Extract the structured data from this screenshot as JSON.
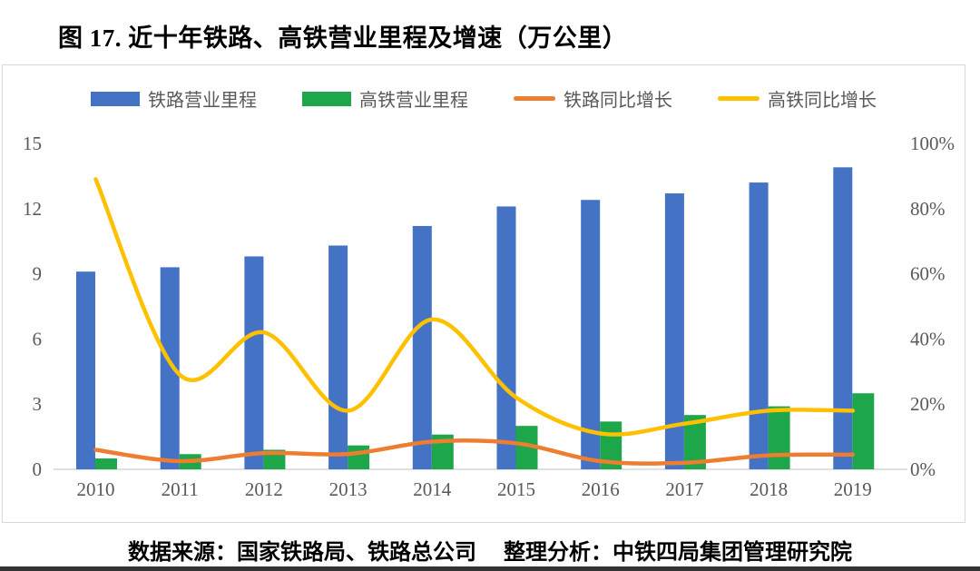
{
  "title": "图 17. 近十年铁路、高铁营业里程及增速（万公里）",
  "source_note": "数据来源：国家铁路局、铁路总公司　 整理分析：中铁四局集团管理研究院",
  "styles": {
    "text_color": "#595959",
    "axis_line_color": "#d6d6d6",
    "frame_border_color": "#d9d9d9"
  },
  "chart_data": {
    "type": "bar",
    "subtype": "combo-bar-line",
    "categories": [
      "2010",
      "2011",
      "2012",
      "2013",
      "2014",
      "2015",
      "2016",
      "2017",
      "2018",
      "2019"
    ],
    "series": [
      {
        "name": "铁路营业里程",
        "type": "bar",
        "axis": "left",
        "color": "#4472C4",
        "values": [
          9.1,
          9.3,
          9.8,
          10.3,
          11.2,
          12.1,
          12.4,
          12.7,
          13.2,
          13.9
        ]
      },
      {
        "name": "高铁营业里程",
        "type": "bar",
        "axis": "left",
        "color": "#1EA64A",
        "values": [
          0.5,
          0.7,
          0.9,
          1.1,
          1.6,
          2.0,
          2.2,
          2.5,
          2.9,
          3.5
        ]
      },
      {
        "name": "铁路同比增长",
        "type": "line",
        "axis": "right",
        "color": "#ED7D31",
        "values": [
          6,
          2.5,
          5,
          4.7,
          8.5,
          8,
          2.5,
          2,
          4.3,
          4.5
        ]
      },
      {
        "name": "高铁同比增长",
        "type": "line",
        "axis": "right",
        "color": "#FFC000",
        "values": [
          89,
          29,
          42,
          18,
          46,
          22,
          11,
          14,
          18,
          18
        ]
      }
    ],
    "left_axis": {
      "min": 0,
      "max": 15,
      "ticks": [
        "0",
        "3",
        "6",
        "9",
        "12",
        "15"
      ]
    },
    "right_axis": {
      "min": 0,
      "max": 100,
      "ticks": [
        "0%",
        "20%",
        "40%",
        "60%",
        "80%",
        "100%"
      ]
    },
    "grid": false,
    "legend_position": "top"
  }
}
